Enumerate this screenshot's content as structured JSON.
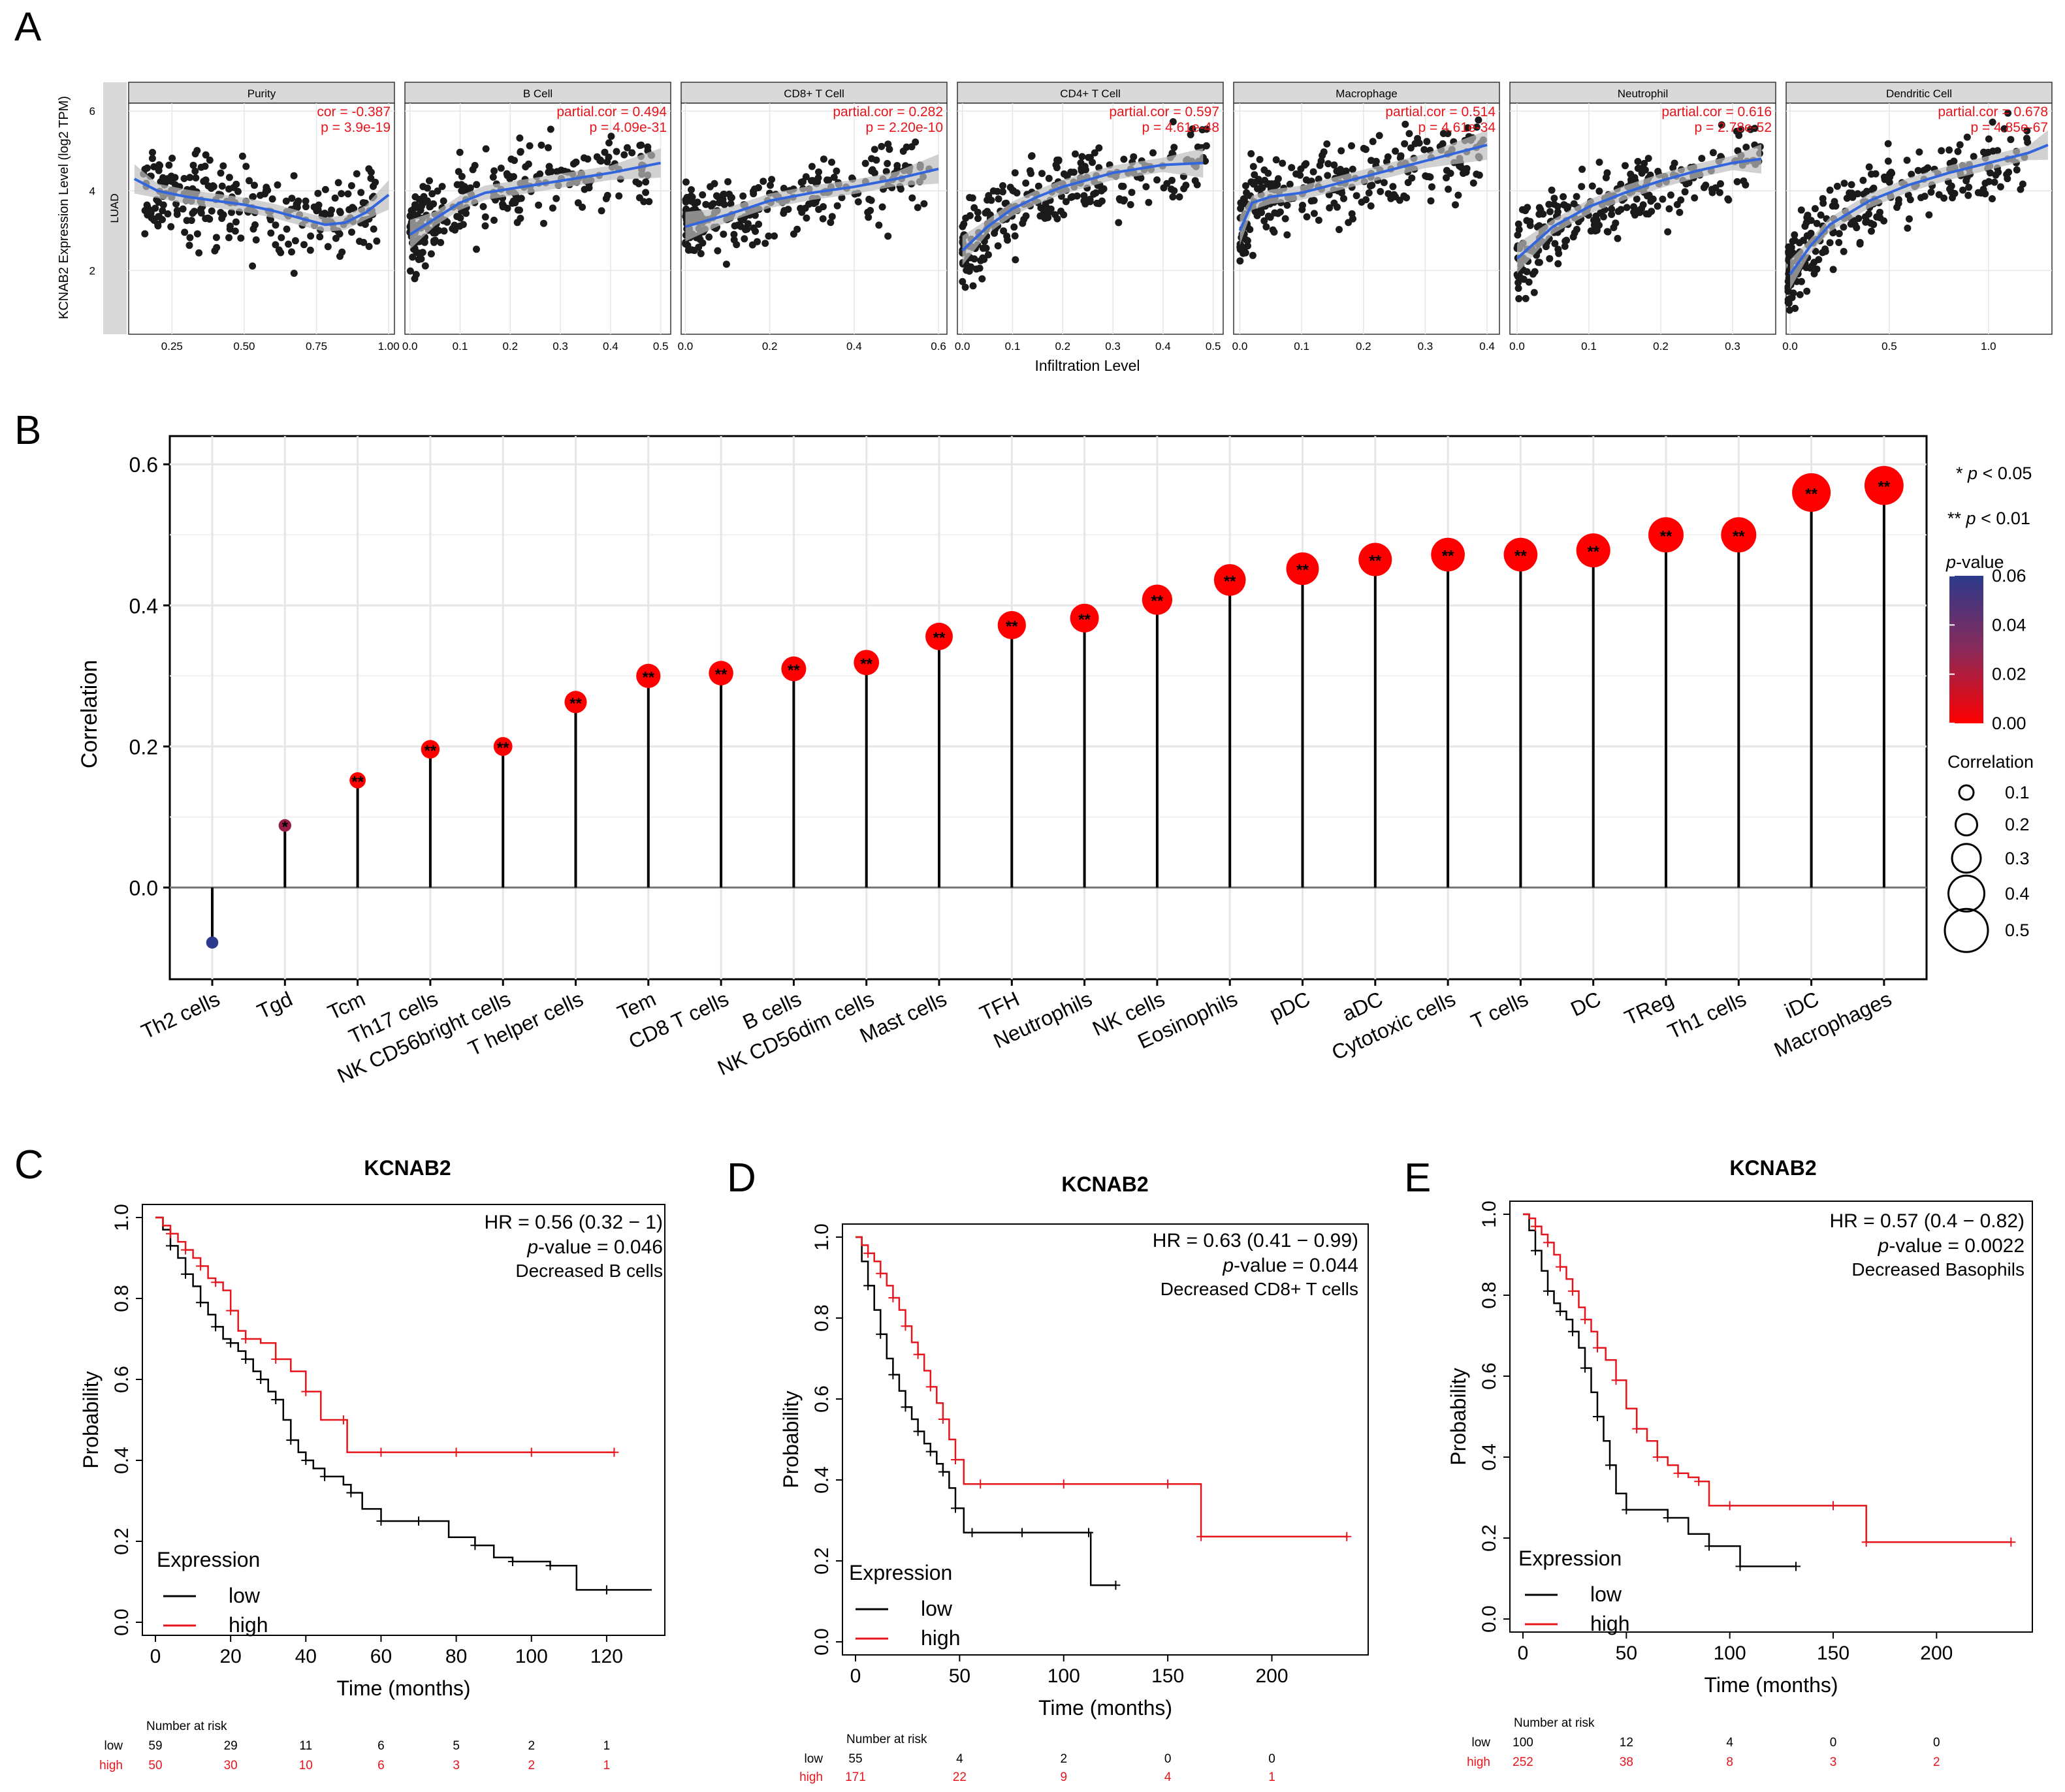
{
  "colors": {
    "low": "#000000",
    "high": "#e8141c",
    "loess": "#3366dd",
    "ci": "#bdbdbd",
    "dot": "#1a1a1a",
    "strip": "#d9d9d9",
    "grid": "#e6e6e6",
    "cor_text": "#e8141c",
    "pval_high": "#2b3a8c",
    "pval_low": "#ff0000"
  },
  "chart_data": [
    {
      "panel": "A",
      "type": "scatter",
      "ylabel": "KCNAB2 Expression Level (log2 TPM)",
      "xlabel": "Infiltration Level",
      "row_label": "LUAD",
      "ylim": [
        0.4,
        6.2
      ],
      "yticks": [
        2,
        4,
        6
      ],
      "panels": [
        {
          "title": "Purity",
          "stat1": "cor = -0.387",
          "stat2": "p = 3.9e-19",
          "xlim": [
            0.1,
            1.02
          ],
          "xticks": [
            0.25,
            0.5,
            0.75,
            1.0
          ],
          "xtick_labels": [
            "0.25",
            "0.50",
            "0.75",
            "1.00"
          ],
          "curve_x": [
            0.12,
            0.2,
            0.3,
            0.4,
            0.5,
            0.6,
            0.7,
            0.78,
            0.85,
            0.92,
            1.0
          ],
          "curve_y": [
            4.3,
            4.0,
            3.85,
            3.75,
            3.65,
            3.5,
            3.3,
            3.15,
            3.2,
            3.45,
            3.9
          ]
        },
        {
          "title": "B Cell",
          "stat1": "partial.cor = 0.494",
          "stat2": "p = 4.09e-31",
          "xlim": [
            -0.01,
            0.52
          ],
          "xticks": [
            0,
            0.1,
            0.2,
            0.3,
            0.4,
            0.5
          ],
          "xtick_labels": [
            "0.0",
            "0.1",
            "0.2",
            "0.3",
            "0.4",
            "0.5"
          ],
          "curve_x": [
            0,
            0.05,
            0.1,
            0.15,
            0.2,
            0.3,
            0.4,
            0.5
          ],
          "curve_y": [
            2.9,
            3.3,
            3.7,
            3.95,
            4.05,
            4.25,
            4.45,
            4.7
          ]
        },
        {
          "title": "CD8+ T Cell",
          "stat1": "partial.cor = 0.282",
          "stat2": "p = 2.20e-10",
          "xlim": [
            -0.01,
            0.62
          ],
          "xticks": [
            0,
            0.2,
            0.4,
            0.6
          ],
          "xtick_labels": [
            "0.0",
            "0.2",
            "0.4",
            "0.6"
          ],
          "curve_x": [
            0,
            0.1,
            0.2,
            0.3,
            0.4,
            0.5,
            0.6
          ],
          "curve_y": [
            3.1,
            3.4,
            3.75,
            3.95,
            4.1,
            4.3,
            4.55
          ]
        },
        {
          "title": "CD4+ T Cell",
          "stat1": "partial.cor = 0.597",
          "stat2": "p = 4.61e-48",
          "xlim": [
            -0.01,
            0.52
          ],
          "xticks": [
            0,
            0.1,
            0.2,
            0.3,
            0.4,
            0.5
          ],
          "xtick_labels": [
            "0.0",
            "0.1",
            "0.2",
            "0.3",
            "0.4",
            "0.5"
          ],
          "curve_x": [
            0,
            0.05,
            0.1,
            0.15,
            0.2,
            0.3,
            0.4,
            0.48
          ],
          "curve_y": [
            2.5,
            3.1,
            3.55,
            3.85,
            4.1,
            4.45,
            4.65,
            4.7
          ]
        },
        {
          "title": "Macrophage",
          "stat1": "partial.cor = 0.514",
          "stat2": "p = 4.61e-34",
          "xlim": [
            -0.01,
            0.42
          ],
          "xticks": [
            0,
            0.1,
            0.2,
            0.3,
            0.4
          ],
          "xtick_labels": [
            "0.0",
            "0.1",
            "0.2",
            "0.3",
            "0.4"
          ],
          "curve_x": [
            0,
            0.02,
            0.05,
            0.1,
            0.15,
            0.2,
            0.3,
            0.4
          ],
          "curve_y": [
            3.0,
            3.7,
            3.85,
            3.95,
            4.15,
            4.35,
            4.75,
            5.15
          ]
        },
        {
          "title": "Neutrophil",
          "stat1": "partial.cor = 0.616",
          "stat2": "p = 2.78e-52",
          "xlim": [
            -0.01,
            0.36
          ],
          "xticks": [
            0,
            0.1,
            0.2,
            0.3
          ],
          "xtick_labels": [
            "0.0",
            "0.1",
            "0.2",
            "0.3"
          ],
          "curve_x": [
            0,
            0.05,
            0.1,
            0.15,
            0.2,
            0.25,
            0.3,
            0.34
          ],
          "curve_y": [
            2.3,
            3.1,
            3.6,
            3.95,
            4.25,
            4.5,
            4.7,
            4.8
          ]
        },
        {
          "title": "Dendritic Cell",
          "stat1": "partial.cor = 0.678",
          "stat2": "p = 4.85e-67",
          "xlim": [
            -0.02,
            1.32
          ],
          "xticks": [
            0,
            0.5,
            1.0
          ],
          "xtick_labels": [
            "0.0",
            "0.5",
            "1.0"
          ],
          "curve_x": [
            0,
            0.1,
            0.2,
            0.4,
            0.6,
            0.8,
            1.0,
            1.2,
            1.3
          ],
          "curve_y": [
            1.9,
            2.6,
            3.15,
            3.75,
            4.15,
            4.45,
            4.7,
            4.95,
            5.15
          ]
        }
      ]
    },
    {
      "panel": "B",
      "type": "lollipop",
      "ylabel": "Correlation",
      "ylim": [
        -0.13,
        0.64
      ],
      "yticks": [
        0.0,
        0.2,
        0.4,
        0.6
      ],
      "ytick_labels": [
        "0.0",
        "0.2",
        "0.4",
        "0.6"
      ],
      "categories": [
        "Th2 cells",
        "Tgd",
        "Tcm",
        "Th17 cells",
        "NK CD56bright cells",
        "T helper cells",
        "Tem",
        "CD8 T cells",
        "B cells",
        "NK CD56dim cells",
        "Mast cells",
        "TFH",
        "Neutrophils",
        "NK cells",
        "Eosinophils",
        "pDC",
        "aDC",
        "Cytotoxic cells",
        "T cells",
        "DC",
        "TReg",
        "Th1 cells",
        "iDC",
        "Macrophages"
      ],
      "values": [
        -0.078,
        0.088,
        0.152,
        0.196,
        0.2,
        0.263,
        0.3,
        0.304,
        0.31,
        0.319,
        0.356,
        0.372,
        0.382,
        0.408,
        0.436,
        0.452,
        0.465,
        0.472,
        0.472,
        0.478,
        0.5,
        0.5,
        0.56,
        0.57
      ],
      "pvalues": [
        0.06,
        0.03,
        0,
        0,
        0,
        0,
        0,
        0,
        0,
        0,
        0,
        0,
        0,
        0,
        0,
        0,
        0,
        0,
        0,
        0,
        0,
        0,
        0,
        0
      ],
      "labels": [
        "",
        "*",
        "**",
        "**",
        "**",
        "**",
        "**",
        "**",
        "**",
        "**",
        "**",
        "**",
        "**",
        "**",
        "**",
        "**",
        "**",
        "**",
        "**",
        "**",
        "**",
        "**",
        "**",
        "**"
      ],
      "legend": {
        "sig1_star": "*",
        "sig1_p": "p",
        "sig1_rest": " < 0.05",
        "sig2_star": "**",
        "sig2_p": "p",
        "sig2_rest": " < 0.01",
        "pvalue_title_p": "p",
        "pvalue_title_rest": "-value",
        "pvalue_ticks": [
          "0.06",
          "0.04",
          "0.02",
          "0.00"
        ],
        "size_title": "Correlation",
        "size_labels": [
          "0.1",
          "0.2",
          "0.3",
          "0.4",
          "0.5"
        ]
      }
    },
    {
      "panel": "C",
      "type": "line",
      "title": "KCNAB2",
      "xlabel": "Time (months)",
      "ylabel": "Probability",
      "xlim": [
        0,
        132
      ],
      "ylim": [
        0,
        1
      ],
      "xticks": [
        0,
        20,
        40,
        60,
        80,
        100,
        120
      ],
      "yticks": [
        0,
        0.2,
        0.4,
        0.6,
        0.8,
        1.0
      ],
      "ytick_labels": [
        "0.0",
        "0.2",
        "0.4",
        "0.6",
        "0.8",
        "1.0"
      ],
      "hr": "HR = 0.56 (0.32 − 1)",
      "pval_prefix": "p",
      "pval_rest": "-value = 0.046",
      "note": "Decreased B cells",
      "legend_title": "Expression",
      "series": [
        {
          "name": "low",
          "x": [
            0,
            2,
            4,
            6,
            8,
            10,
            12,
            14,
            16,
            18,
            20,
            22,
            24,
            26,
            28,
            30,
            32,
            34,
            36,
            38,
            40,
            42,
            45,
            50,
            52,
            55,
            60,
            65,
            70,
            78,
            85,
            90,
            95,
            100,
            105,
            112,
            120,
            132
          ],
          "y": [
            1.0,
            0.97,
            0.93,
            0.9,
            0.86,
            0.83,
            0.79,
            0.76,
            0.73,
            0.7,
            0.69,
            0.67,
            0.65,
            0.62,
            0.6,
            0.57,
            0.55,
            0.5,
            0.45,
            0.42,
            0.4,
            0.38,
            0.36,
            0.34,
            0.32,
            0.28,
            0.25,
            0.25,
            0.25,
            0.21,
            0.19,
            0.16,
            0.15,
            0.15,
            0.14,
            0.08,
            0.08,
            0.08
          ]
        },
        {
          "name": "high",
          "x": [
            0,
            2,
            4,
            6,
            8,
            10,
            12,
            14,
            16,
            18,
            20,
            22,
            24,
            28,
            32,
            36,
            40,
            44,
            50,
            51,
            60,
            70,
            80,
            90,
            100,
            110,
            122
          ],
          "y": [
            1.0,
            0.98,
            0.96,
            0.94,
            0.92,
            0.9,
            0.88,
            0.85,
            0.84,
            0.82,
            0.77,
            0.72,
            0.7,
            0.69,
            0.65,
            0.62,
            0.57,
            0.5,
            0.5,
            0.42,
            0.42,
            0.42,
            0.42,
            0.42,
            0.42,
            0.42,
            0.42
          ]
        }
      ],
      "risk": {
        "title": "Number at risk",
        "times": [
          0,
          20,
          40,
          60,
          80,
          100,
          120
        ],
        "low": [
          "59",
          "29",
          "11",
          "6",
          "5",
          "2",
          "1"
        ],
        "high": [
          "50",
          "30",
          "10",
          "6",
          "3",
          "2",
          "1"
        ]
      }
    },
    {
      "panel": "D",
      "type": "line",
      "title": "KCNAB2",
      "xlabel": "Time (months)",
      "ylabel": "Probability",
      "xlim": [
        0,
        240
      ],
      "ylim": [
        0,
        1
      ],
      "xticks": [
        0,
        50,
        100,
        150,
        200
      ],
      "yticks": [
        0,
        0.2,
        0.4,
        0.6,
        0.8,
        1.0
      ],
      "ytick_labels": [
        "0.0",
        "0.2",
        "0.4",
        "0.6",
        "0.8",
        "1.0"
      ],
      "hr": "HR = 0.63 (0.41 − 0.99)",
      "pval_prefix": "p",
      "pval_rest": "-value = 0.044",
      "note": "Decreased CD8+ T cells",
      "legend_title": "Expression",
      "series": [
        {
          "name": "low",
          "x": [
            0,
            3,
            6,
            9,
            12,
            15,
            18,
            21,
            24,
            27,
            30,
            33,
            36,
            39,
            42,
            45,
            48,
            52,
            56,
            60,
            80,
            100,
            112,
            113,
            125
          ],
          "y": [
            1.0,
            0.94,
            0.88,
            0.82,
            0.76,
            0.7,
            0.66,
            0.62,
            0.58,
            0.55,
            0.52,
            0.49,
            0.47,
            0.44,
            0.42,
            0.38,
            0.33,
            0.27,
            0.27,
            0.27,
            0.27,
            0.27,
            0.27,
            0.14,
            0.14
          ]
        },
        {
          "name": "high",
          "x": [
            0,
            3,
            6,
            9,
            12,
            15,
            18,
            21,
            24,
            27,
            30,
            33,
            36,
            39,
            42,
            45,
            48,
            52,
            60,
            80,
            100,
            120,
            150,
            165,
            166,
            200,
            236
          ],
          "y": [
            1.0,
            0.98,
            0.96,
            0.94,
            0.91,
            0.88,
            0.85,
            0.82,
            0.78,
            0.74,
            0.71,
            0.67,
            0.63,
            0.59,
            0.55,
            0.5,
            0.45,
            0.39,
            0.39,
            0.39,
            0.39,
            0.39,
            0.39,
            0.39,
            0.26,
            0.26,
            0.26
          ]
        }
      ],
      "risk": {
        "title": "Number at risk",
        "times": [
          0,
          50,
          100,
          150,
          200
        ],
        "low": [
          "55",
          "4",
          "2",
          "0",
          "0"
        ],
        "high": [
          "171",
          "22",
          "9",
          "4",
          "1"
        ]
      }
    },
    {
      "panel": "E",
      "type": "line",
      "title": "KCNAB2",
      "xlabel": "Time (months)",
      "ylabel": "Probability",
      "xlim": [
        0,
        240
      ],
      "ylim": [
        0,
        1
      ],
      "xticks": [
        0,
        50,
        100,
        150,
        200
      ],
      "yticks": [
        0,
        0.2,
        0.4,
        0.6,
        0.8,
        1.0
      ],
      "ytick_labels": [
        "0.0",
        "0.2",
        "0.4",
        "0.6",
        "0.8",
        "1.0"
      ],
      "hr": "HR = 0.57 (0.4 − 0.82)",
      "pval_prefix": "p",
      "pval_rest": "-value = 0.0022",
      "note": "Decreased Basophils",
      "legend_title": "Expression",
      "series": [
        {
          "name": "low",
          "x": [
            0,
            3,
            6,
            9,
            12,
            15,
            18,
            21,
            24,
            27,
            30,
            33,
            36,
            39,
            42,
            45,
            50,
            60,
            70,
            80,
            90,
            100,
            105,
            120,
            132
          ],
          "y": [
            1.0,
            0.96,
            0.91,
            0.86,
            0.81,
            0.78,
            0.76,
            0.74,
            0.71,
            0.67,
            0.62,
            0.56,
            0.5,
            0.44,
            0.38,
            0.31,
            0.27,
            0.27,
            0.25,
            0.21,
            0.18,
            0.18,
            0.13,
            0.13,
            0.13
          ]
        },
        {
          "name": "high",
          "x": [
            0,
            3,
            6,
            9,
            12,
            15,
            18,
            21,
            24,
            27,
            30,
            33,
            36,
            40,
            45,
            50,
            55,
            60,
            65,
            70,
            75,
            80,
            85,
            90,
            100,
            120,
            150,
            165,
            166,
            200,
            236
          ],
          "y": [
            1.0,
            0.99,
            0.97,
            0.95,
            0.93,
            0.9,
            0.87,
            0.84,
            0.81,
            0.77,
            0.74,
            0.71,
            0.67,
            0.64,
            0.59,
            0.52,
            0.47,
            0.44,
            0.4,
            0.38,
            0.36,
            0.35,
            0.34,
            0.28,
            0.28,
            0.28,
            0.28,
            0.28,
            0.19,
            0.19,
            0.19
          ]
        }
      ],
      "risk": {
        "title": "Number at risk",
        "times": [
          0,
          50,
          100,
          150,
          200
        ],
        "low": [
          "100",
          "12",
          "4",
          "0",
          "0"
        ],
        "high": [
          "252",
          "38",
          "8",
          "3",
          "2"
        ]
      }
    }
  ],
  "panel_labels": [
    "A",
    "B",
    "C",
    "D",
    "E"
  ]
}
